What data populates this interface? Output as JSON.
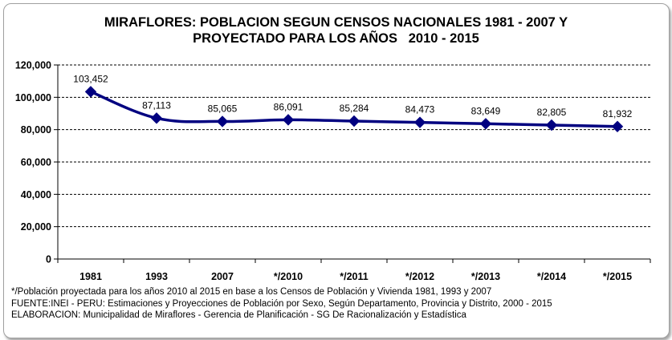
{
  "chart_data": {
    "type": "line",
    "title_lines": [
      "MIRAFLORES: POBLACION SEGUN CENSOS NACIONALES 1981 - 2007 Y",
      "PROYECTADO PARA LOS AÑOS   2010 - 2015"
    ],
    "categories": [
      "1981",
      "1993",
      "2007",
      "*/2010",
      "*/2011",
      "*/2012",
      "*/2013",
      "*/2014",
      "*/2015"
    ],
    "values": [
      103452,
      87113,
      85065,
      86091,
      85284,
      84473,
      83649,
      82805,
      81932
    ],
    "data_labels": [
      "103,452",
      "87,113",
      "85,065",
      "86,091",
      "85,284",
      "84,473",
      "83,649",
      "82,805",
      "81,932"
    ],
    "y_ticks": [
      "0",
      "20,000",
      "40,000",
      "60,000",
      "80,000",
      "100,000",
      "120,000"
    ],
    "ylim": [
      0,
      120000
    ],
    "grid": "horizontal dashed",
    "legend": "none",
    "line_color": "#000080",
    "marker": "diamond"
  },
  "footnotes": {
    "note": "*/Población proyectada para los años 2010 al 2015 en base a los Censos de Población y Vivienda 1981, 1993 y 2007",
    "source": "FUENTE:INEI - PERU: Estimaciones y Proyecciones de Población por Sexo, Según Departamento, Provincia y Distrito, 2000 - 2015",
    "elaboration": "ELABORACION:  Municipalidad de Miraflores - Gerencia de Planificación - SG De Racionalización y Estadística"
  }
}
